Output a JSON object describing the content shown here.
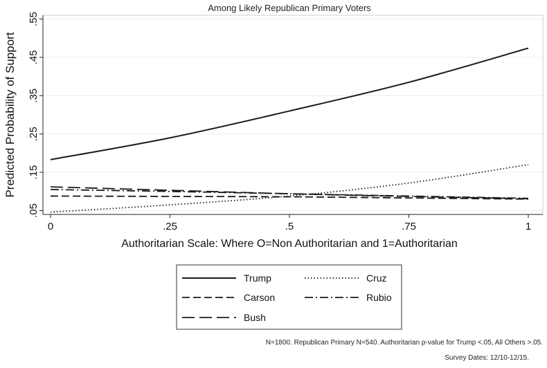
{
  "chart_data": {
    "type": "line",
    "title": "Among Likely Republican Primary Voters",
    "xlabel": "Authoritarian Scale: Where O=Non Authoritarian and 1=Authoritarian",
    "ylabel": "Predicted Probability of Support",
    "xlim": [
      0,
      1
    ],
    "ylim": [
      0.04,
      0.56
    ],
    "x_ticks": [
      0,
      0.25,
      0.5,
      0.75,
      1
    ],
    "x_tick_labels": [
      "0",
      ".25",
      ".5",
      ".75",
      "1"
    ],
    "y_ticks": [
      0.05,
      0.15,
      0.25,
      0.35,
      0.45,
      0.55
    ],
    "y_tick_labels": [
      ".05",
      ".15",
      ".25",
      ".35",
      ".45",
      ".55"
    ],
    "grid": true,
    "legend_position": "bottom-center",
    "x": [
      0,
      0.25,
      0.5,
      0.75,
      1
    ],
    "series": [
      {
        "name": "Trump",
        "values": [
          0.183,
          0.24,
          0.31,
          0.385,
          0.474
        ],
        "dash": "solid"
      },
      {
        "name": "Cruz",
        "values": [
          0.046,
          0.065,
          0.088,
          0.122,
          0.17
        ],
        "dash": "dot"
      },
      {
        "name": "Carson",
        "values": [
          0.088,
          0.087,
          0.086,
          0.083,
          0.08
        ],
        "dash": "dash"
      },
      {
        "name": "Rubio",
        "values": [
          0.105,
          0.1,
          0.094,
          0.088,
          0.082
        ],
        "dash": "dashdot"
      },
      {
        "name": "Bush",
        "values": [
          0.112,
          0.103,
          0.094,
          0.087,
          0.081
        ],
        "dash": "longdash"
      }
    ]
  },
  "notes": {
    "line1": "N=1800. Republican Primary N=540. Authoritarian p-value for Trump <.05, All Others >.05.",
    "line2": "Survey Dates: 12/10-12/15."
  },
  "colors": {
    "background": "#ffffff",
    "plot_background": "#ffffff",
    "grid": "#e8edf0",
    "line": "#1a1a1a"
  }
}
